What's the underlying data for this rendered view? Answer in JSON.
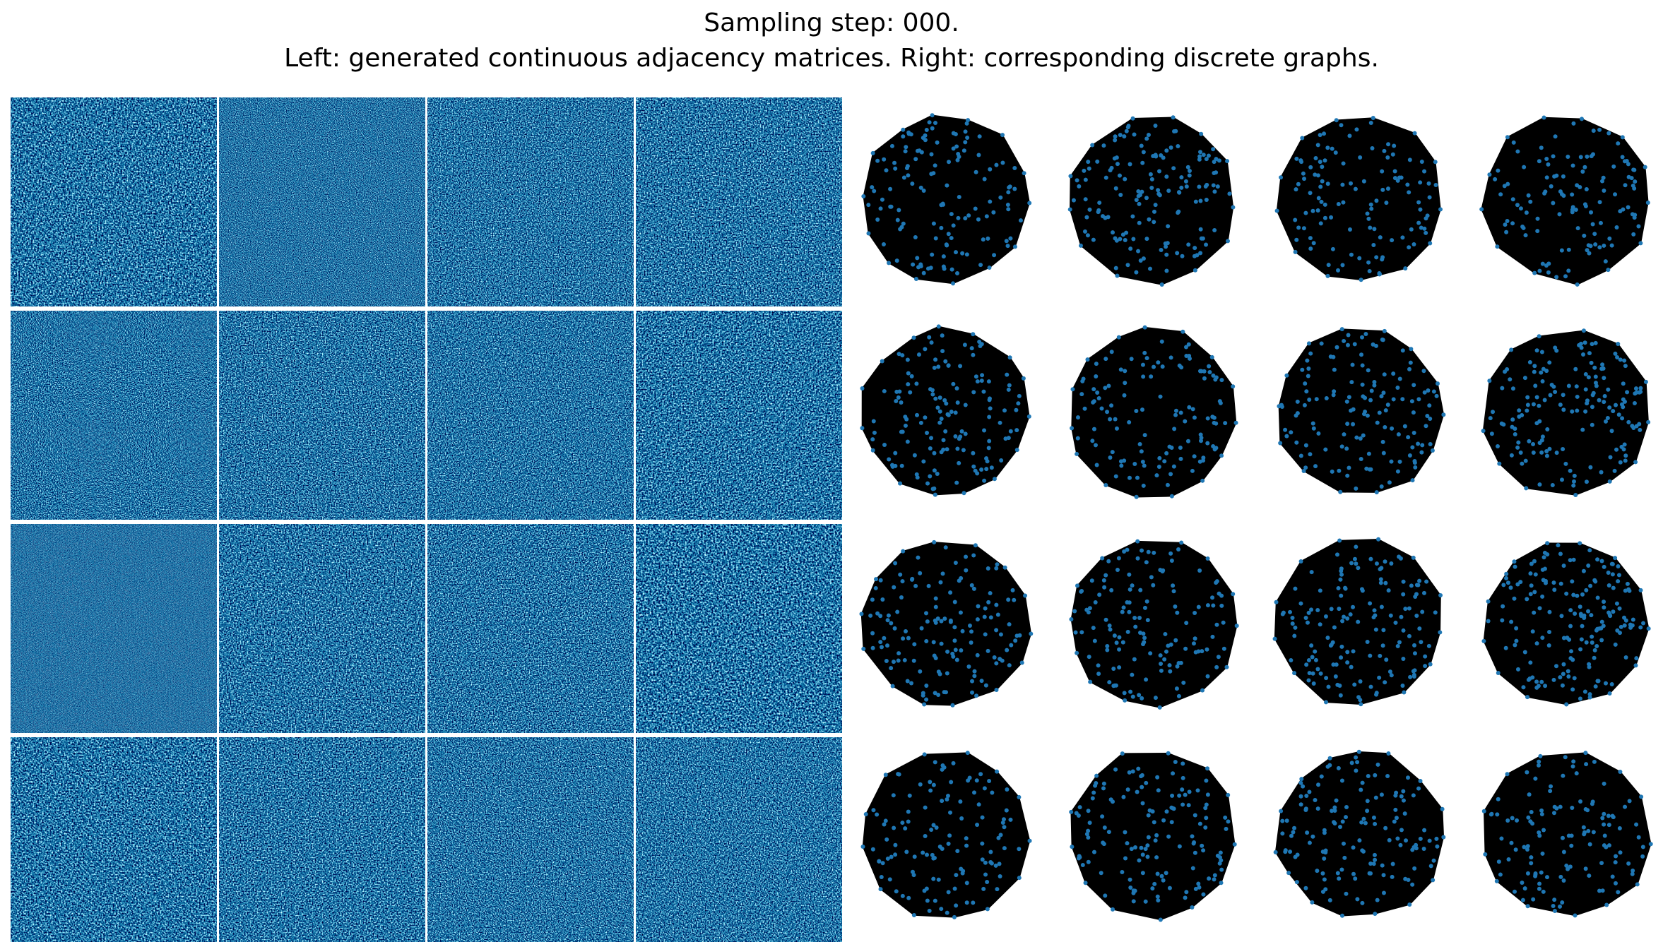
{
  "title": {
    "line1": "Sampling step: 000.",
    "line2": "Left: generated continuous adjacency matrices. Right: corresponding discrete graphs."
  }
}
